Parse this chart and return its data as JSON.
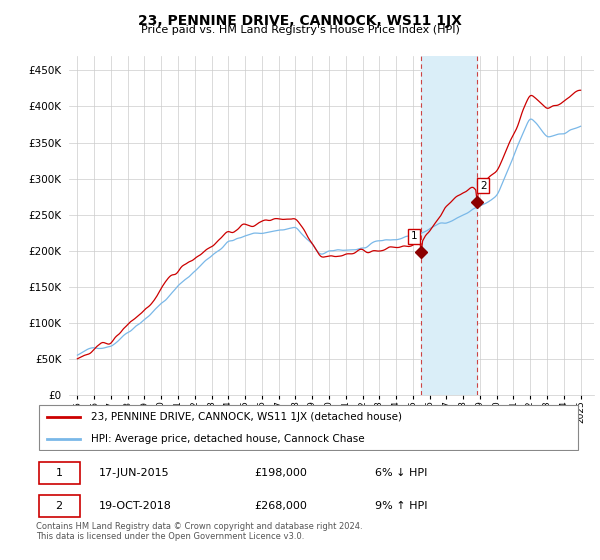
{
  "title": "23, PENNINE DRIVE, CANNOCK, WS11 1JX",
  "subtitle": "Price paid vs. HM Land Registry's House Price Index (HPI)",
  "legend_line1": "23, PENNINE DRIVE, CANNOCK, WS11 1JX (detached house)",
  "legend_line2": "HPI: Average price, detached house, Cannock Chase",
  "transaction1_date": "17-JUN-2015",
  "transaction1_price": "£198,000",
  "transaction1_hpi": "6% ↓ HPI",
  "transaction2_date": "19-OCT-2018",
  "transaction2_price": "£268,000",
  "transaction2_hpi": "9% ↑ HPI",
  "footer": "Contains HM Land Registry data © Crown copyright and database right 2024.\nThis data is licensed under the Open Government Licence v3.0.",
  "hpi_color": "#7ab8e8",
  "price_color": "#cc0000",
  "shaded_color": "#daeef8",
  "marker_color": "#8b0000",
  "marker1_x": 2015.46,
  "marker1_y": 198000,
  "marker2_x": 2018.8,
  "marker2_y": 268000,
  "vline1_x": 2015.46,
  "vline2_x": 2018.8,
  "ylim_min": 0,
  "ylim_max": 470000,
  "xlim_min": 1994.5,
  "xlim_max": 2025.8,
  "yticks": [
    0,
    50000,
    100000,
    150000,
    200000,
    250000,
    300000,
    350000,
    400000,
    450000
  ],
  "xticks": [
    1995,
    1996,
    1997,
    1998,
    1999,
    2000,
    2001,
    2002,
    2003,
    2004,
    2005,
    2006,
    2007,
    2008,
    2009,
    2010,
    2011,
    2012,
    2013,
    2014,
    2015,
    2016,
    2017,
    2018,
    2019,
    2020,
    2021,
    2022,
    2023,
    2024,
    2025
  ]
}
